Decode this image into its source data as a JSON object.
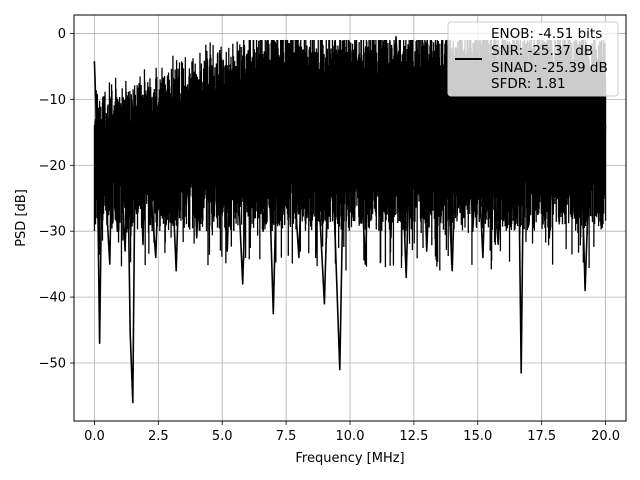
{
  "chart_data": {
    "type": "line",
    "title": "",
    "xlabel": "Frequency [MHz]",
    "ylabel": "PSD [dB]",
    "xlim": [
      -0.8,
      20.8
    ],
    "ylim": [
      -58.8,
      2.8
    ],
    "xticks": [
      0.0,
      2.5,
      5.0,
      7.5,
      10.0,
      12.5,
      15.0,
      17.5,
      20.0
    ],
    "xtick_labels": [
      "0.0",
      "2.5",
      "5.0",
      "7.5",
      "10.0",
      "12.5",
      "15.0",
      "17.5",
      "20.0"
    ],
    "yticks": [
      0,
      -10,
      -20,
      -30,
      -40,
      -50
    ],
    "ytick_labels": [
      "0",
      "−10",
      "−20",
      "−30",
      "−40",
      "−50"
    ],
    "grid": true,
    "line_color": "#000000",
    "legend": {
      "placement": "top-right",
      "entries": [
        "ENOB: -4.51 bits",
        "SNR: -25.37 dB",
        "SINAD: -25.39 dB",
        "SFDR: 1.81"
      ]
    },
    "series": [
      {
        "x": [
          0.0,
          0.1,
          0.2,
          0.3,
          0.4,
          0.5,
          0.6,
          0.7,
          0.8,
          0.9,
          1.0,
          1.1,
          1.2,
          1.3,
          1.4,
          1.5,
          1.6,
          1.7,
          1.8,
          1.9,
          2.0,
          2.2,
          2.4,
          2.6,
          2.8,
          3.0,
          3.2,
          3.4,
          3.6,
          3.8,
          4.0,
          4.2,
          4.4,
          4.6,
          4.8,
          5.0,
          5.2,
          5.4,
          5.6,
          5.8,
          6.0,
          6.2,
          6.4,
          6.6,
          6.8,
          7.0,
          7.2,
          7.4,
          7.6,
          7.8,
          8.0,
          8.2,
          8.4,
          8.6,
          8.8,
          9.0,
          9.2,
          9.4,
          9.6,
          9.8,
          10.0,
          10.2,
          10.4,
          10.6,
          10.8,
          11.0,
          11.2,
          11.4,
          11.6,
          11.8,
          12.0,
          12.2,
          12.4,
          12.6,
          12.8,
          13.0,
          13.2,
          13.4,
          13.6,
          13.8,
          14.0,
          14.2,
          14.4,
          14.6,
          14.8,
          15.0,
          15.2,
          15.4,
          15.6,
          15.8,
          16.0,
          16.2,
          16.4,
          16.6,
          16.7,
          16.8,
          17.0,
          17.2,
          17.4,
          17.6,
          17.8,
          18.0,
          18.2,
          18.4,
          18.6,
          18.8,
          19.0,
          19.2,
          19.4,
          19.6,
          19.8,
          20.0
        ],
        "y": [
          -4.2,
          -16.0,
          -47.0,
          -18.0,
          -12.0,
          -28.0,
          -35.0,
          -14.0,
          -22.0,
          -30.0,
          -11.0,
          -25.0,
          -33.0,
          -19.0,
          -45.5,
          -56.0,
          -15.0,
          -27.0,
          -20.0,
          -32.0,
          -13.0,
          -24.0,
          -34.0,
          -9.0,
          -29.0,
          -18.0,
          -36.0,
          -11.0,
          -26.0,
          -8.0,
          -31.0,
          -14.0,
          -23.0,
          -5.0,
          -28.0,
          -16.0,
          -33.0,
          -7.0,
          -21.0,
          -38.0,
          -12.0,
          -25.0,
          -4.0,
          -30.0,
          -17.0,
          -42.5,
          -10.0,
          -27.0,
          -6.0,
          -22.0,
          -34.0,
          -9.0,
          -19.0,
          -3.0,
          -26.0,
          -41.0,
          -13.0,
          -29.0,
          -51.0,
          -8.0,
          -24.0,
          -2.0,
          -18.0,
          -35.0,
          -11.0,
          -27.0,
          -5.0,
          -21.0,
          -31.0,
          -0.5,
          -16.0,
          -37.0,
          -9.0,
          -23.0,
          -6.0,
          -33.0,
          -14.0,
          -28.0,
          -4.0,
          -19.0,
          -36.0,
          -10.0,
          -25.0,
          -7.0,
          -30.0,
          -17.0,
          -34.0,
          -8.0,
          -22.0,
          -32.0,
          -12.0,
          -27.0,
          -5.0,
          -20.0,
          -51.5,
          -15.0,
          -29.0,
          -9.0,
          -24.0,
          -6.0,
          -31.0,
          -13.0,
          -26.0,
          -7.0,
          -19.0,
          -28.0,
          -10.0,
          -39.0,
          -16.0,
          -8.0,
          -25.0,
          -14.0
        ]
      }
    ]
  }
}
